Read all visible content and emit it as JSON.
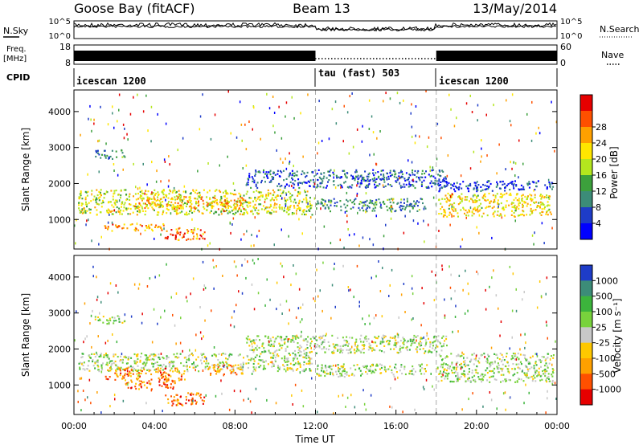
{
  "header": {
    "station": "Goose Bay (fitACF)",
    "beam": "Beam 13",
    "date": "13/May/2014"
  },
  "noise_panel": {
    "left_label": "N.Sky",
    "left_ticks": [
      "10^5",
      "10^0"
    ],
    "right_label": "N.Search",
    "right_ticks": [
      "10^5",
      "10^0"
    ]
  },
  "freq_panel": {
    "left_label_1": "Freq.",
    "left_label_2": "[MHz]",
    "left_ticks": [
      "18",
      "8"
    ],
    "right_label": "Nave",
    "right_ticks": [
      "60",
      "0"
    ]
  },
  "cpid_panel": {
    "label": "CPID",
    "segments": [
      {
        "label": "icescan 1200",
        "start_hour": 0,
        "end_hour": 12
      },
      {
        "label": "tau (fast) 503",
        "start_hour": 12,
        "end_hour": 18
      },
      {
        "label": "icescan 1200",
        "start_hour": 18,
        "end_hour": 24
      }
    ]
  },
  "chart_data": [
    {
      "type": "heatmap",
      "name": "power",
      "ylabel": "Slant Range [km]",
      "yticks": [
        "1000",
        "2000",
        "3000",
        "4000"
      ],
      "ylim": [
        180,
        4600
      ],
      "colorbar_label": "Power [dB]",
      "colorbar_ticks": [
        "4",
        "8",
        "12",
        "16",
        "20",
        "24",
        "28"
      ],
      "colorbar_colors": [
        "#0000ff",
        "#1e3cc8",
        "#3c8c78",
        "#3ca03c",
        "#b4e61e",
        "#ffe600",
        "#ffa000",
        "#ff5000",
        "#e60000"
      ],
      "bands": [
        {
          "hours": [
            0.2,
            11.8
          ],
          "range": [
            1150,
            1850
          ],
          "level": 0.55
        },
        {
          "hours": [
            3.0,
            8.5
          ],
          "range": [
            1300,
            1650
          ],
          "level": 0.7
        },
        {
          "hours": [
            1.0,
            2.5
          ],
          "range": [
            2700,
            2950
          ],
          "level": 0.3
        },
        {
          "hours": [
            1.5,
            4.5
          ],
          "range": [
            700,
            900
          ],
          "level": 0.75
        },
        {
          "hours": [
            4.5,
            6.5
          ],
          "range": [
            450,
            800
          ],
          "level": 0.8
        },
        {
          "hours": [
            8.5,
            18.5
          ],
          "range": [
            1900,
            2400
          ],
          "level": 0.2
        },
        {
          "hours": [
            12.0,
            17.5
          ],
          "range": [
            1250,
            1600
          ],
          "level": 0.3
        },
        {
          "hours": [
            18.0,
            23.8
          ],
          "range": [
            1100,
            1750
          ],
          "level": 0.6
        },
        {
          "hours": [
            18.0,
            23.8
          ],
          "range": [
            1800,
            2100
          ],
          "level": 0.15
        }
      ]
    },
    {
      "type": "heatmap",
      "name": "velocity",
      "ylabel": "Slant Range [km]",
      "xlabel": "Time UT",
      "xticks": [
        "00:00",
        "04:00",
        "08:00",
        "12:00",
        "16:00",
        "20:00",
        "00:00"
      ],
      "xlim": [
        0,
        24
      ],
      "yticks": [
        "1000",
        "2000",
        "3000",
        "4000"
      ],
      "ylim": [
        180,
        4600
      ],
      "colorbar_label": "Velocity [m s⁻¹]",
      "colorbar_ticks": [
        "1000",
        "500",
        "100",
        "25",
        "-25",
        "-100",
        "-500",
        "-1000"
      ],
      "colorbar_colors": [
        "#1e3cc8",
        "#3c8c78",
        "#3cb43c",
        "#78d23c",
        "#c8c8c8",
        "#ffc800",
        "#ffa000",
        "#ff5000",
        "#e60000"
      ],
      "bands": [
        {
          "hours": [
            0.2,
            11.8
          ],
          "range": [
            1400,
            1900
          ],
          "level": 0.45
        },
        {
          "hours": [
            1.5,
            5.5
          ],
          "range": [
            1150,
            1500
          ],
          "level": 0.75
        },
        {
          "hours": [
            2.5,
            5.0
          ],
          "range": [
            900,
            1150
          ],
          "level": 0.8
        },
        {
          "hours": [
            4.5,
            6.5
          ],
          "range": [
            450,
            800
          ],
          "level": 0.82
        },
        {
          "hours": [
            6.5,
            8.5
          ],
          "range": [
            1300,
            1600
          ],
          "level": 0.7
        },
        {
          "hours": [
            8.5,
            18.5
          ],
          "range": [
            1900,
            2400
          ],
          "level": 0.45
        },
        {
          "hours": [
            12.0,
            17.5
          ],
          "range": [
            1250,
            1600
          ],
          "level": 0.45
        },
        {
          "hours": [
            18.0,
            23.8
          ],
          "range": [
            1100,
            1900
          ],
          "level": 0.45
        },
        {
          "hours": [
            1.0,
            2.5
          ],
          "range": [
            2700,
            2950
          ],
          "level": 0.45
        }
      ]
    }
  ]
}
